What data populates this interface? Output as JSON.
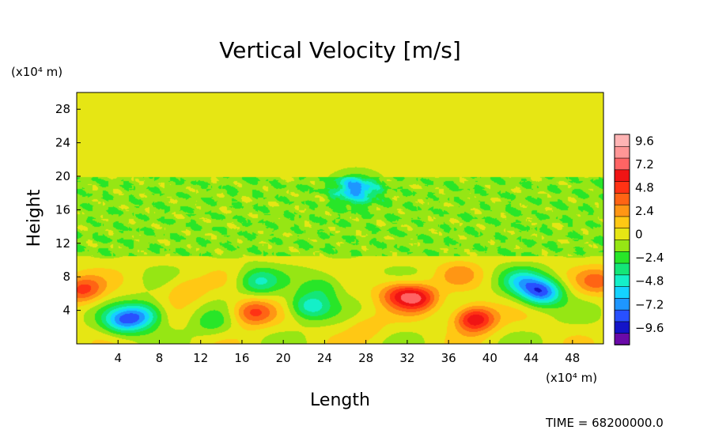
{
  "chart_data": {
    "type": "heatmap",
    "title": "Vertical Velocity [m/s]",
    "xlabel": "Length",
    "ylabel": "Height",
    "x_unit": "(x10⁴ m)",
    "y_unit": "(x10⁴ m)",
    "xlim": [
      0,
      51
    ],
    "ylim": [
      0,
      30
    ],
    "x_ticks": [
      4,
      8,
      12,
      16,
      20,
      24,
      28,
      32,
      36,
      40,
      44,
      48
    ],
    "y_ticks": [
      4,
      8,
      12,
      16,
      20,
      24,
      28
    ],
    "colorbar": {
      "label_values": [
        "9.6",
        "7.2",
        "4.8",
        "2.4",
        "0",
        "−2.4",
        "−4.8",
        "−7.2",
        "−9.6"
      ],
      "range": [
        -10.8,
        10.8
      ],
      "levels": 18
    },
    "field": {
      "background": 0.4,
      "features": [
        {
          "x": 4.5,
          "y": 2.8,
          "value": -6.2
        },
        {
          "x": 6.5,
          "y": 3.5,
          "value": -5.0
        },
        {
          "x": 10.5,
          "y": 6.5,
          "value": 2.0
        },
        {
          "x": 13.0,
          "y": 2.5,
          "value": -2.0
        },
        {
          "x": 17.0,
          "y": 3.8,
          "value": 4.8
        },
        {
          "x": 17.5,
          "y": 7.5,
          "value": -4.0
        },
        {
          "x": 22.5,
          "y": 4.5,
          "value": -4.8
        },
        {
          "x": 24.0,
          "y": 7.0,
          "value": -2.5
        },
        {
          "x": 33.0,
          "y": 5.5,
          "value": 5.8
        },
        {
          "x": 31.0,
          "y": 6.0,
          "value": 4.0
        },
        {
          "x": 38.5,
          "y": 3.0,
          "value": 7.2
        },
        {
          "x": 37.0,
          "y": 8.5,
          "value": 2.0
        },
        {
          "x": 45.0,
          "y": 6.2,
          "value": -7.8
        },
        {
          "x": 43.0,
          "y": 7.5,
          "value": -4.0
        },
        {
          "x": 0.5,
          "y": 6.5,
          "value": 4.8
        },
        {
          "x": 50.5,
          "y": 7.5,
          "value": 3.5
        },
        {
          "x": 27.0,
          "y": 18.5,
          "value": -6.0
        },
        {
          "x": 28.0,
          "y": 2.0,
          "value": 1.5
        }
      ]
    }
  },
  "footer": {
    "time_label": "TIME = 68200000.0"
  }
}
